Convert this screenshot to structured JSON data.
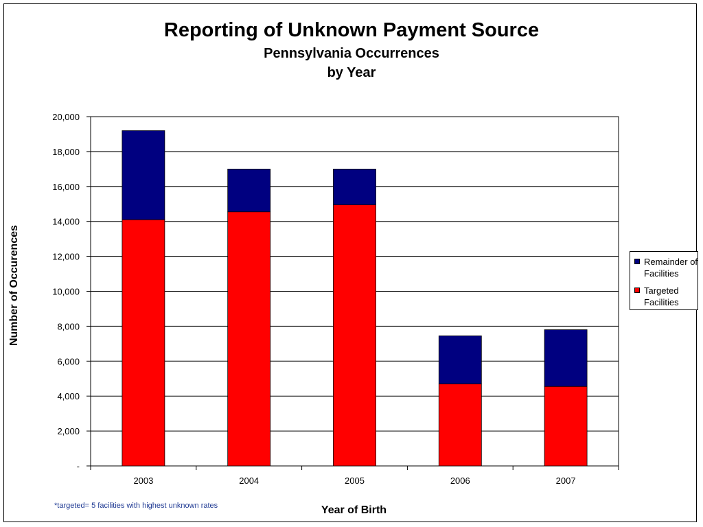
{
  "chart_data": {
    "type": "bar",
    "stacked": true,
    "title": "Reporting of Unknown Payment Source",
    "subtitle_lines": [
      "Pennsylvania Occurrences",
      "by Year"
    ],
    "xlabel": "Year of Birth",
    "ylabel": "Number of Occurences",
    "categories": [
      "2003",
      "2004",
      "2005",
      "2006",
      "2007"
    ],
    "series": [
      {
        "name": "Targeted Facilities",
        "color": "#ff0000",
        "values": [
          14100,
          14550,
          14950,
          4700,
          4550
        ]
      },
      {
        "name": "Remainder of Facilities",
        "color": "#000080",
        "values": [
          5100,
          2450,
          2050,
          2750,
          3250
        ]
      }
    ],
    "ylim": [
      0,
      20000
    ],
    "yticks": [
      "-",
      "2,000",
      "4,000",
      "6,000",
      "8,000",
      "10,000",
      "12,000",
      "14,000",
      "16,000",
      "18,000",
      "20,000"
    ],
    "grid": true,
    "legend_position": "right",
    "legend_entries": [
      "Remainder of Facilities",
      "Targeted Facilities"
    ],
    "footnote": "*targeted= 5 facilities with highest unknown rates"
  }
}
